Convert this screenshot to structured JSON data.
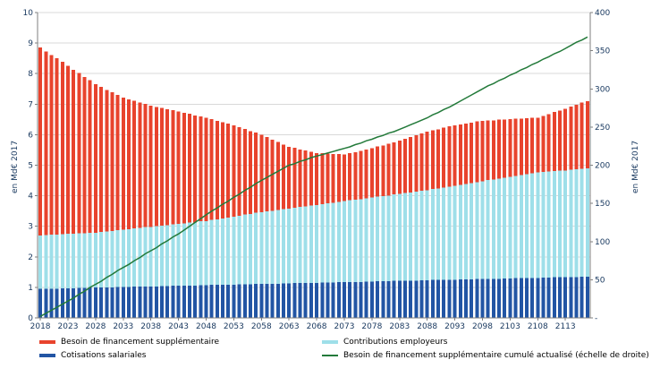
{
  "chart_data": {
    "type": "bar",
    "title": "",
    "x_start_year": 2018,
    "x_end_year": 2117,
    "x_tick_labels": [
      "2018",
      "2023",
      "2028",
      "2033",
      "2038",
      "2043",
      "2048",
      "2053",
      "2058",
      "2063",
      "2068",
      "2073",
      "2078",
      "2083",
      "2088",
      "2093",
      "2098",
      "2103",
      "2108",
      "2113"
    ],
    "grid": true,
    "legend_position": "bottom",
    "left_axis": {
      "label": "en Md€ 2017",
      "min": 0,
      "max": 10,
      "step": 1,
      "tick_labels": [
        "0",
        "1",
        "2",
        "3",
        "4",
        "5",
        "6",
        "7",
        "8",
        "9",
        "10"
      ]
    },
    "right_axis": {
      "label": "en Md€ 2017",
      "min": 0,
      "max": 400,
      "step": 50,
      "tick_labels": [
        "-",
        "50",
        "100",
        "150",
        "200",
        "250",
        "300",
        "350",
        "400"
      ]
    },
    "series": [
      {
        "id": "cotisations",
        "name": "Cotisations salariales",
        "type": "bar",
        "stack_order": 0,
        "color": "#2255a4",
        "values": [
          0.95,
          0.95,
          0.96,
          0.96,
          0.97,
          0.97,
          0.97,
          0.98,
          0.98,
          0.99,
          0.99,
          0.99,
          1.0,
          1.0,
          1.01,
          1.01,
          1.01,
          1.02,
          1.02,
          1.03,
          1.03,
          1.03,
          1.04,
          1.04,
          1.05,
          1.05,
          1.06,
          1.06,
          1.06,
          1.07,
          1.07,
          1.08,
          1.08,
          1.08,
          1.09,
          1.09,
          1.1,
          1.1,
          1.1,
          1.11,
          1.11,
          1.12,
          1.12,
          1.12,
          1.13,
          1.13,
          1.14,
          1.14,
          1.14,
          1.15,
          1.15,
          1.16,
          1.16,
          1.16,
          1.17,
          1.17,
          1.18,
          1.18,
          1.18,
          1.19,
          1.19,
          1.2,
          1.2,
          1.2,
          1.21,
          1.21,
          1.22,
          1.22,
          1.22,
          1.23,
          1.23,
          1.24,
          1.24,
          1.24,
          1.25,
          1.25,
          1.26,
          1.26,
          1.26,
          1.27,
          1.27,
          1.28,
          1.28,
          1.28,
          1.29,
          1.29,
          1.3,
          1.3,
          1.31,
          1.31,
          1.31,
          1.32,
          1.32,
          1.33,
          1.33,
          1.33,
          1.34,
          1.34,
          1.35,
          1.35
        ]
      },
      {
        "id": "contributions",
        "name": "Contributions employeurs",
        "type": "bar",
        "stack_order": 1,
        "color": "#9edfe9",
        "values": [
          1.75,
          1.76,
          1.76,
          1.77,
          1.77,
          1.78,
          1.78,
          1.79,
          1.79,
          1.8,
          1.8,
          1.82,
          1.83,
          1.85,
          1.86,
          1.88,
          1.89,
          1.91,
          1.92,
          1.94,
          1.95,
          1.97,
          1.98,
          2.0,
          2.01,
          2.03,
          2.04,
          2.06,
          2.07,
          2.09,
          2.1,
          2.13,
          2.15,
          2.18,
          2.2,
          2.23,
          2.25,
          2.28,
          2.3,
          2.33,
          2.35,
          2.37,
          2.39,
          2.41,
          2.43,
          2.45,
          2.47,
          2.49,
          2.51,
          2.53,
          2.55,
          2.57,
          2.59,
          2.61,
          2.63,
          2.65,
          2.67,
          2.69,
          2.71,
          2.73,
          2.75,
          2.77,
          2.79,
          2.81,
          2.83,
          2.85,
          2.87,
          2.89,
          2.91,
          2.93,
          2.95,
          2.98,
          3.0,
          3.03,
          3.05,
          3.08,
          3.1,
          3.13,
          3.15,
          3.18,
          3.2,
          3.23,
          3.25,
          3.28,
          3.3,
          3.33,
          3.35,
          3.38,
          3.4,
          3.43,
          3.45,
          3.46,
          3.47,
          3.48,
          3.49,
          3.5,
          3.51,
          3.53,
          3.54,
          3.55
        ]
      },
      {
        "id": "besoin",
        "name": "Besoin de financement supplémentaire",
        "type": "bar",
        "stack_order": 2,
        "color": "#e8432d",
        "values": [
          6.15,
          6.02,
          5.89,
          5.77,
          5.64,
          5.51,
          5.38,
          5.25,
          5.12,
          4.99,
          4.86,
          4.75,
          4.64,
          4.54,
          4.43,
          4.32,
          4.25,
          4.18,
          4.11,
          4.04,
          3.97,
          3.91,
          3.85,
          3.8,
          3.74,
          3.68,
          3.62,
          3.56,
          3.5,
          3.44,
          3.38,
          3.3,
          3.22,
          3.15,
          3.07,
          2.99,
          2.9,
          2.81,
          2.72,
          2.63,
          2.54,
          2.44,
          2.33,
          2.23,
          2.12,
          2.02,
          1.96,
          1.89,
          1.83,
          1.76,
          1.7,
          1.67,
          1.63,
          1.6,
          1.56,
          1.53,
          1.55,
          1.56,
          1.58,
          1.59,
          1.61,
          1.64,
          1.66,
          1.69,
          1.71,
          1.74,
          1.78,
          1.81,
          1.85,
          1.88,
          1.92,
          1.93,
          1.94,
          1.96,
          1.97,
          1.98,
          1.98,
          1.98,
          1.98,
          1.98,
          1.98,
          1.96,
          1.94,
          1.93,
          1.91,
          1.89,
          1.87,
          1.85,
          1.83,
          1.81,
          1.79,
          1.84,
          1.88,
          1.93,
          1.97,
          2.02,
          2.07,
          2.11,
          2.16,
          2.2
        ]
      },
      {
        "id": "cumule",
        "name": "Besoin de financement supplémentaire cumulé actualisé (échelle de droite)",
        "type": "line",
        "axis": "right",
        "color": "#237a3a",
        "values": [
          2,
          6,
          10,
          14,
          18,
          22,
          26,
          31,
          35,
          40,
          44,
          48,
          53,
          57,
          62,
          66,
          70,
          75,
          79,
          84,
          88,
          92,
          97,
          101,
          106,
          110,
          115,
          120,
          125,
          130,
          135,
          140,
          144,
          149,
          153,
          158,
          162,
          167,
          171,
          176,
          180,
          184,
          188,
          192,
          196,
          200,
          202,
          205,
          207,
          210,
          212,
          214,
          216,
          218,
          220,
          222,
          224,
          227,
          229,
          232,
          234,
          237,
          239,
          242,
          244,
          247,
          250,
          253,
          256,
          259,
          262,
          266,
          269,
          273,
          276,
          280,
          284,
          288,
          292,
          296,
          300,
          304,
          307,
          311,
          314,
          318,
          321,
          325,
          328,
          332,
          335,
          339,
          342,
          346,
          349,
          353,
          357,
          361,
          364,
          368
        ]
      }
    ],
    "colors": {
      "grid": "#d9d9d9",
      "axis": "#7f7f7f",
      "tick_text": "#17375e"
    }
  }
}
